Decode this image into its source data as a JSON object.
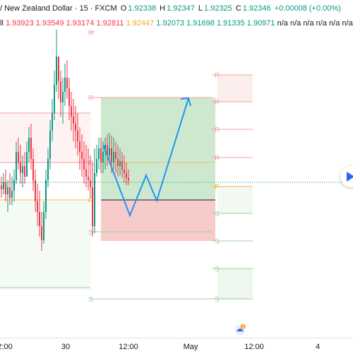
{
  "header": {
    "symbol": "/ New Zealand Dollar · 15 · FXCM",
    "o_label": "O",
    "o_value": "1.92338",
    "h_label": "H",
    "h_value": "1.92347",
    "l_label": "L",
    "l_value": "1.92325",
    "c_label": "C",
    "c_value": "1.92346",
    "change": "+0.00008 (+0.00%)"
  },
  "indicator_row": {
    "prefix": "ll",
    "values": [
      "1.93923",
      "1.93549",
      "1.93174",
      "1.92811",
      "1.92447",
      "1.92073",
      "1.91698",
      "1.91335",
      "1.90971"
    ],
    "na_values": [
      "n/a",
      "n/a",
      "n/a",
      "n/a",
      "n/a",
      "n/a"
    ]
  },
  "time_axis": {
    "labels": [
      "2:00",
      "30",
      "12:00",
      "May",
      "12:00",
      "4"
    ]
  },
  "pivot_labels": {
    "left": [
      "R",
      "R",
      "R",
      "P",
      "S",
      "S"
    ],
    "right": [
      "R",
      "R",
      "R",
      "R",
      "P",
      "S",
      "S",
      "S",
      "S"
    ]
  },
  "colors": {
    "up": "#089981",
    "down": "#f23645",
    "projection": "#2196f3",
    "accent": "#2962ff"
  },
  "icons": {
    "play": "play-icon",
    "badge": "notification-badge-icon"
  }
}
